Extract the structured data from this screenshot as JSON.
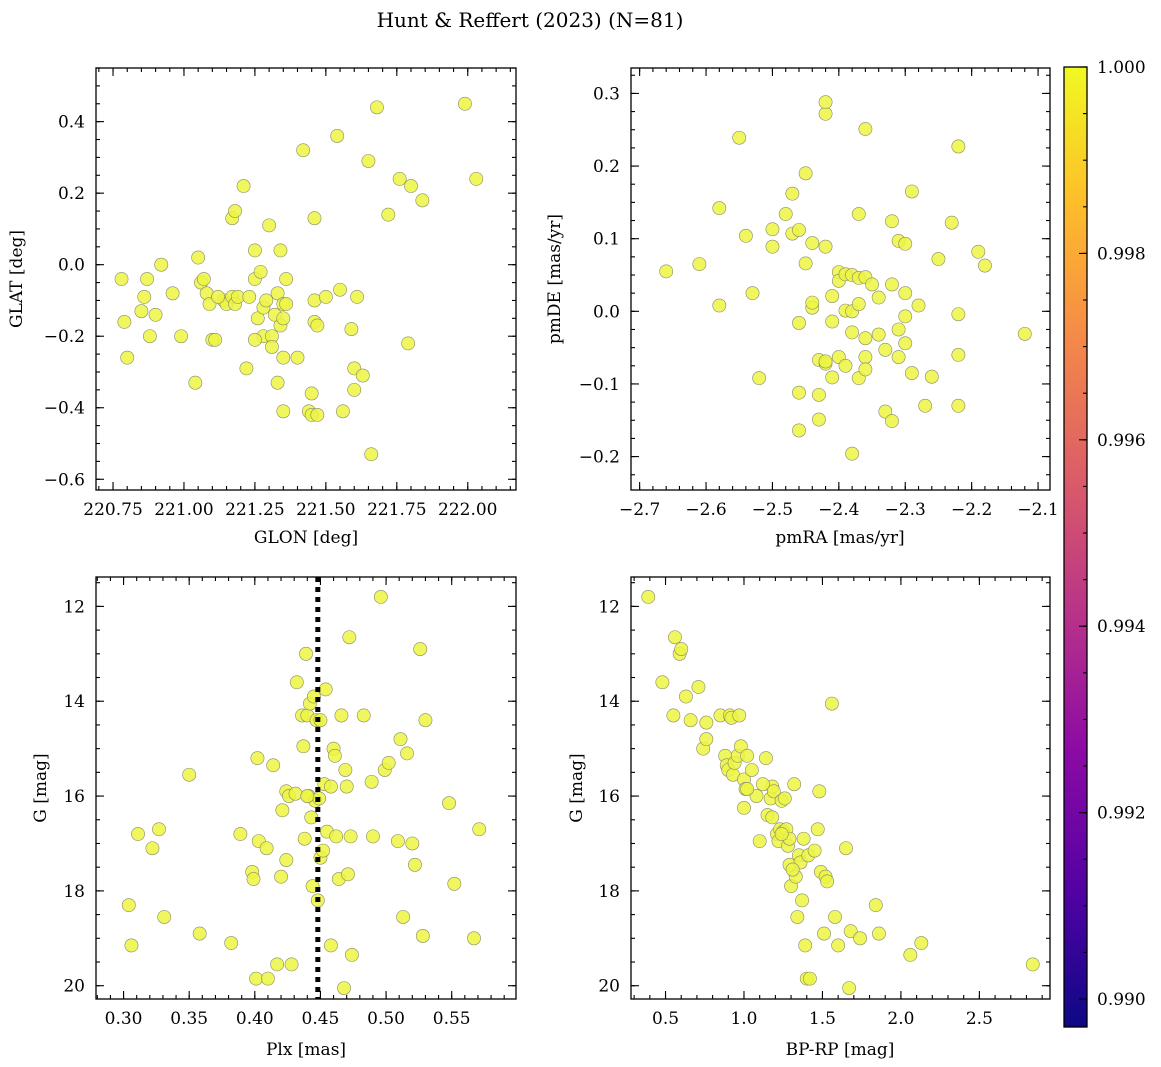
{
  "suptitle": "Hunt & Reffert (2023) (N=81)",
  "point_color": "#ecf542",
  "colorbar": {
    "colormap": "plasma",
    "min": 0.9897,
    "max": 1.0,
    "ticks": [
      0.99,
      0.992,
      0.994,
      0.996,
      0.998,
      1.0
    ],
    "tick_labels": [
      "0.990",
      "0.992",
      "0.994",
      "0.996",
      "0.998",
      "1.000"
    ],
    "stops": [
      "#0d0887",
      "#5302a3",
      "#8b0aa5",
      "#b83289",
      "#db5c68",
      "#f48849",
      "#febd2a",
      "#f0f921"
    ]
  },
  "chart_data": [
    {
      "id": "glon-glat",
      "type": "scatter",
      "title": "",
      "xlabel": "GLON [deg]",
      "ylabel": "GLAT [deg]",
      "xlim": [
        220.69,
        222.17
      ],
      "ylim": [
        -0.63,
        0.55
      ],
      "xticks": [
        220.75,
        221.0,
        221.25,
        221.5,
        221.75,
        222.0
      ],
      "xtick_labels": [
        "220.75",
        "221.00",
        "221.25",
        "221.50",
        "221.75",
        "222.00"
      ],
      "yticks": [
        -0.6,
        -0.4,
        -0.2,
        0.0,
        0.2,
        0.4
      ],
      "ytick_labels": [
        "−0.6",
        "−0.4",
        "−0.2",
        "0.0",
        "0.2",
        "0.4"
      ],
      "x": [
        220.78,
        220.79,
        220.8,
        220.85,
        220.86,
        220.87,
        220.88,
        220.9,
        220.92,
        220.96,
        220.99,
        221.04,
        221.05,
        221.06,
        221.07,
        221.08,
        221.09,
        221.1,
        221.11,
        221.14,
        221.15,
        221.17,
        221.17,
        221.18,
        221.18,
        221.19,
        221.21,
        221.22,
        221.23,
        221.25,
        221.25,
        221.26,
        221.27,
        221.28,
        221.28,
        221.29,
        221.3,
        221.31,
        221.31,
        221.32,
        221.33,
        221.33,
        221.34,
        221.34,
        221.35,
        221.35,
        221.35,
        221.36,
        221.36,
        221.4,
        221.42,
        221.44,
        221.45,
        221.45,
        221.46,
        221.46,
        221.46,
        221.47,
        221.47,
        221.5,
        221.54,
        221.55,
        221.56,
        221.59,
        221.6,
        221.6,
        221.61,
        221.63,
        221.65,
        221.66,
        221.68,
        221.72,
        221.76,
        221.79,
        221.8,
        221.84,
        221.99,
        222.03,
        221.35,
        221.12,
        221.25
      ],
      "y": [
        -0.04,
        -0.16,
        -0.26,
        -0.13,
        -0.09,
        -0.04,
        -0.2,
        -0.14,
        0.0,
        -0.08,
        -0.2,
        -0.33,
        0.02,
        -0.05,
        -0.04,
        -0.08,
        -0.11,
        -0.21,
        -0.21,
        -0.1,
        -0.11,
        -0.09,
        0.13,
        0.15,
        -0.11,
        -0.09,
        0.22,
        -0.29,
        -0.09,
        -0.04,
        0.04,
        -0.15,
        -0.02,
        -0.12,
        -0.2,
        -0.1,
        0.11,
        -0.2,
        -0.23,
        -0.14,
        -0.08,
        -0.33,
        -0.17,
        0.04,
        -0.11,
        -0.26,
        -0.41,
        -0.04,
        -0.11,
        -0.26,
        0.32,
        -0.41,
        -0.36,
        -0.42,
        -0.16,
        0.13,
        -0.1,
        -0.42,
        -0.17,
        -0.09,
        0.36,
        -0.07,
        -0.41,
        -0.18,
        -0.35,
        -0.29,
        -0.09,
        -0.31,
        0.29,
        -0.53,
        0.44,
        0.14,
        0.24,
        -0.22,
        0.22,
        0.18,
        0.45,
        0.24,
        -0.15,
        -0.09,
        -0.21
      ]
    },
    {
      "id": "pmra-pmde",
      "type": "scatter",
      "title": "",
      "xlabel": "pmRA [mas/yr]",
      "ylabel": "pmDE [mas/yr]",
      "xlim": [
        -2.713,
        -2.082
      ],
      "ylim": [
        -0.246,
        0.335
      ],
      "xticks": [
        -2.7,
        -2.6,
        -2.5,
        -2.4,
        -2.3,
        -2.2,
        -2.1
      ],
      "xtick_labels": [
        "−2.7",
        "−2.6",
        "−2.5",
        "−2.4",
        "−2.3",
        "−2.2",
        "−2.1"
      ],
      "yticks": [
        -0.2,
        -0.1,
        0.0,
        0.1,
        0.2,
        0.3
      ],
      "ytick_labels": [
        "−0.2",
        "−0.1",
        "0.0",
        "0.1",
        "0.2",
        "0.3"
      ],
      "x": [
        -2.66,
        -2.61,
        -2.58,
        -2.58,
        -2.55,
        -2.54,
        -2.53,
        -2.52,
        -2.5,
        -2.5,
        -2.48,
        -2.47,
        -2.47,
        -2.46,
        -2.46,
        -2.46,
        -2.46,
        -2.45,
        -2.45,
        -2.44,
        -2.44,
        -2.44,
        -2.43,
        -2.43,
        -2.43,
        -2.42,
        -2.42,
        -2.42,
        -2.42,
        -2.41,
        -2.41,
        -2.41,
        -2.4,
        -2.4,
        -2.4,
        -2.39,
        -2.39,
        -2.38,
        -2.38,
        -2.38,
        -2.38,
        -2.37,
        -2.37,
        -2.37,
        -2.37,
        -2.36,
        -2.36,
        -2.36,
        -2.36,
        -2.36,
        -2.35,
        -2.34,
        -2.34,
        -2.33,
        -2.32,
        -2.32,
        -2.32,
        -2.31,
        -2.31,
        -2.31,
        -2.3,
        -2.3,
        -2.3,
        -2.3,
        -2.29,
        -2.29,
        -2.28,
        -2.27,
        -2.26,
        -2.25,
        -2.23,
        -2.22,
        -2.22,
        -2.22,
        -2.22,
        -2.19,
        -2.18,
        -2.12,
        -2.42,
        -2.39,
        -2.33
      ],
      "y": [
        0.055,
        0.065,
        0.142,
        0.008,
        0.239,
        0.104,
        0.025,
        -0.092,
        0.089,
        0.113,
        0.134,
        0.162,
        0.107,
        0.112,
        -0.016,
        -0.164,
        -0.112,
        0.19,
        0.066,
        0.094,
        0.005,
        0.012,
        -0.115,
        -0.149,
        -0.067,
        -0.072,
        -0.069,
        0.272,
        0.288,
        -0.014,
        -0.091,
        0.021,
        0.054,
        0.042,
        -0.063,
        0.051,
        0.001,
        -0.196,
        0.05,
        -0.029,
        0.0,
        0.134,
        0.01,
        -0.092,
        0.046,
        0.251,
        0.047,
        -0.037,
        -0.063,
        -0.08,
        0.037,
        -0.032,
        0.019,
        -0.138,
        0.124,
        -0.151,
        0.037,
        0.097,
        -0.063,
        -0.025,
        0.093,
        0.025,
        -0.007,
        -0.044,
        -0.085,
        0.165,
        0.008,
        -0.13,
        -0.09,
        0.072,
        0.122,
        0.227,
        -0.004,
        -0.06,
        -0.13,
        0.082,
        0.063,
        -0.031,
        0.089,
        -0.075,
        -0.053
      ]
    },
    {
      "id": "plx-g",
      "type": "scatter",
      "title": "",
      "xlabel": "Plx [mas]",
      "ylabel": "G [mag]",
      "xlim": [
        0.279,
        0.599
      ],
      "ylim": [
        20.28,
        11.38
      ],
      "xticks": [
        0.3,
        0.35,
        0.4,
        0.45,
        0.5,
        0.55
      ],
      "xtick_labels": [
        "0.30",
        "0.35",
        "0.40",
        "0.45",
        "0.50",
        "0.55"
      ],
      "yticks": [
        12,
        14,
        16,
        18,
        20
      ],
      "ytick_labels": [
        "12",
        "14",
        "16",
        "18",
        "20"
      ],
      "vline": {
        "x": 0.448,
        "style": "dotted",
        "color": "#000000"
      },
      "x": [
        0.304,
        0.306,
        0.311,
        0.322,
        0.327,
        0.331,
        0.35,
        0.358,
        0.382,
        0.389,
        0.398,
        0.399,
        0.401,
        0.402,
        0.403,
        0.409,
        0.41,
        0.414,
        0.417,
        0.42,
        0.421,
        0.424,
        0.424,
        0.426,
        0.428,
        0.431,
        0.432,
        0.436,
        0.437,
        0.438,
        0.439,
        0.44,
        0.441,
        0.442,
        0.443,
        0.444,
        0.446,
        0.447,
        0.448,
        0.449,
        0.45,
        0.452,
        0.453,
        0.454,
        0.455,
        0.458,
        0.46,
        0.461,
        0.462,
        0.464,
        0.466,
        0.468,
        0.469,
        0.47,
        0.471,
        0.472,
        0.473,
        0.474,
        0.483,
        0.489,
        0.49,
        0.496,
        0.499,
        0.502,
        0.509,
        0.511,
        0.513,
        0.516,
        0.52,
        0.522,
        0.526,
        0.528,
        0.53,
        0.548,
        0.552,
        0.567,
        0.571,
        0.45,
        0.445,
        0.44,
        0.458
      ],
      "y": [
        18.3,
        19.15,
        16.8,
        17.1,
        16.7,
        18.55,
        15.55,
        18.9,
        19.1,
        16.8,
        17.6,
        17.75,
        19.85,
        15.2,
        16.95,
        17.1,
        19.85,
        15.35,
        19.55,
        17.7,
        16.3,
        17.35,
        15.9,
        16.0,
        19.55,
        15.95,
        13.6,
        14.3,
        14.95,
        16.9,
        13.0,
        14.3,
        16.0,
        14.05,
        16.45,
        17.9,
        16.1,
        14.4,
        18.2,
        16.05,
        17.3,
        17.15,
        15.75,
        13.75,
        16.75,
        15.8,
        15.0,
        15.15,
        16.85,
        17.75,
        14.3,
        20.05,
        15.45,
        15.8,
        17.65,
        12.65,
        16.85,
        19.35,
        14.3,
        15.7,
        16.85,
        11.8,
        15.45,
        15.3,
        16.95,
        14.8,
        18.55,
        15.1,
        17.0,
        17.45,
        12.9,
        18.95,
        14.4,
        16.15,
        17.85,
        19.0,
        16.7,
        14.4,
        13.9,
        16.0,
        19.15
      ]
    },
    {
      "id": "bprp-g",
      "type": "scatter",
      "title": "",
      "xlabel": "BP-RP [mag]",
      "ylabel": "G [mag]",
      "xlim": [
        0.28,
        2.95
      ],
      "ylim": [
        20.28,
        11.38
      ],
      "xticks": [
        0.5,
        1.0,
        1.5,
        2.0,
        2.5
      ],
      "xtick_labels": [
        "0.5",
        "1.0",
        "1.5",
        "2.0",
        "2.5"
      ],
      "yticks": [
        12,
        14,
        16,
        18,
        20
      ],
      "ytick_labels": [
        "12",
        "14",
        "16",
        "18",
        "20"
      ],
      "x": [
        0.39,
        0.48,
        0.55,
        0.56,
        0.59,
        0.6,
        0.63,
        0.66,
        0.71,
        0.74,
        0.76,
        0.76,
        0.85,
        0.88,
        0.89,
        0.9,
        0.91,
        0.92,
        0.93,
        0.94,
        0.96,
        0.98,
        1.0,
        1.0,
        1.01,
        1.02,
        1.05,
        1.08,
        1.1,
        1.14,
        1.15,
        1.17,
        1.18,
        1.19,
        1.21,
        1.22,
        1.23,
        1.24,
        1.25,
        1.27,
        1.28,
        1.29,
        1.29,
        1.3,
        1.32,
        1.33,
        1.34,
        1.35,
        1.36,
        1.37,
        1.38,
        1.39,
        1.4,
        1.41,
        1.42,
        1.45,
        1.47,
        1.48,
        1.49,
        1.51,
        1.52,
        1.53,
        1.56,
        1.58,
        1.6,
        1.65,
        1.67,
        1.68,
        1.74,
        1.84,
        1.86,
        2.06,
        2.13,
        2.84,
        0.97,
        1.12,
        1.26,
        1.31,
        1.18,
        1.02,
        1.24
      ],
      "y": [
        11.8,
        13.6,
        14.3,
        12.65,
        13.0,
        12.9,
        13.9,
        14.4,
        13.7,
        15.0,
        14.8,
        14.45,
        14.3,
        15.15,
        15.35,
        15.45,
        14.3,
        14.35,
        15.55,
        15.3,
        15.15,
        14.95,
        16.25,
        15.65,
        15.85,
        15.15,
        15.45,
        16.0,
        16.95,
        15.2,
        16.4,
        16.05,
        15.8,
        15.9,
        16.8,
        16.95,
        16.7,
        16.1,
        16.75,
        16.7,
        17.05,
        17.45,
        16.9,
        17.9,
        15.75,
        17.7,
        18.55,
        17.25,
        17.4,
        18.2,
        16.9,
        19.15,
        19.85,
        17.25,
        19.85,
        17.15,
        16.7,
        15.9,
        17.6,
        18.9,
        17.7,
        17.8,
        14.05,
        18.55,
        19.15,
        17.1,
        20.05,
        18.85,
        19.0,
        18.3,
        18.9,
        19.35,
        19.1,
        19.55,
        14.3,
        15.75,
        16.05,
        17.55,
        16.45,
        15.85,
        16.8
      ]
    }
  ]
}
